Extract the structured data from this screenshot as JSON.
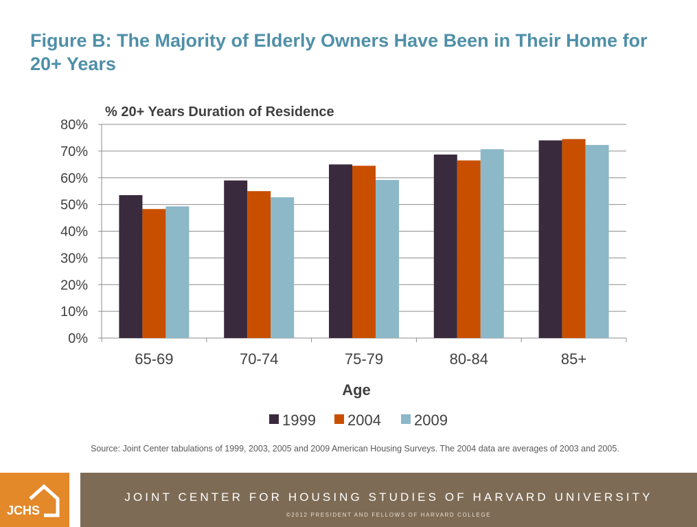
{
  "slide": {
    "title": "Figure B: The Majority of Elderly Owners Have Been in Their Home for 20+ Years",
    "source": "Source: Joint Center tabulations of 1999, 2003, 2005 and 2009 American Housing Surveys. The 2004 data are averages of 2003 and 2005."
  },
  "footer": {
    "logo_text": "JCHS",
    "name": "JOINT CENTER FOR HOUSING STUDIES OF HARVARD UNIVERSITY",
    "copyright": "©2012 PRESIDENT AND FELLOWS OF HARVARD COLLEGE"
  },
  "colors": {
    "title": "#4f8fa8",
    "logo": "#e3892a",
    "band": "#7d6b55"
  },
  "chart_data": {
    "type": "bar",
    "title": "% 20+ Years Duration of Residence",
    "xlabel": "Age",
    "ylabel": "",
    "categories": [
      "65-69",
      "70-74",
      "75-79",
      "80-84",
      "85+"
    ],
    "series": [
      {
        "name": "1999",
        "color": "#3a2a3d",
        "values": [
          53.5,
          59,
          65,
          68.7,
          74
        ]
      },
      {
        "name": "2004",
        "color": "#c84f00",
        "values": [
          48.3,
          55,
          64.5,
          66.5,
          74.5
        ]
      },
      {
        "name": "2009",
        "color": "#8cb8c8",
        "values": [
          49.3,
          52.7,
          59.2,
          70.7,
          72.3
        ]
      }
    ],
    "ylim": [
      0,
      80
    ],
    "yticks": [
      0,
      10,
      20,
      30,
      40,
      50,
      60,
      70,
      80
    ],
    "ytick_labels": [
      "0%",
      "10%",
      "20%",
      "30%",
      "40%",
      "50%",
      "60%",
      "70%",
      "80%"
    ],
    "grid": true,
    "legend": "bottom"
  }
}
